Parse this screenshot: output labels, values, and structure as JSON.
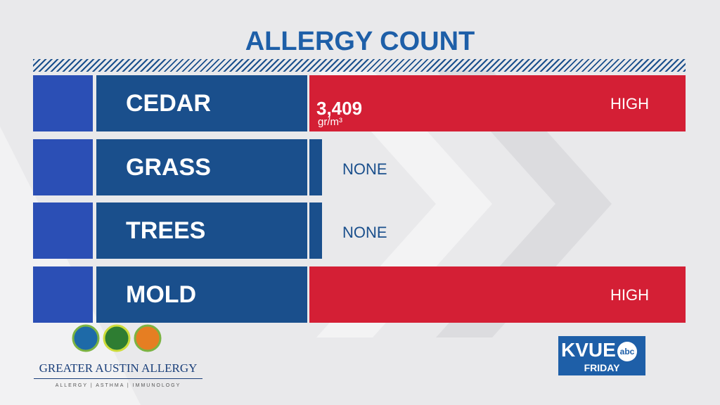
{
  "header": {
    "title": "ALLERGY COUNT"
  },
  "rows": [
    {
      "name": "CEDAR",
      "level": "HIGH",
      "count": "3,409",
      "unit": "gr/m³",
      "color": "#d41f35"
    },
    {
      "name": "GRASS",
      "level": "NONE",
      "color": "#1a4f8c"
    },
    {
      "name": "TREES",
      "level": "NONE",
      "color": "#1a4f8c"
    },
    {
      "name": "MOLD",
      "level": "HIGH",
      "color": "#d41f35"
    }
  ],
  "sponsor": {
    "name": "GREATER AUSTIN ALLERGY",
    "tagline": "ALLERGY | ASTHMA | IMMUNOLOGY"
  },
  "station": {
    "name": "KVUE",
    "network": "abc",
    "day": "FRIDAY"
  }
}
